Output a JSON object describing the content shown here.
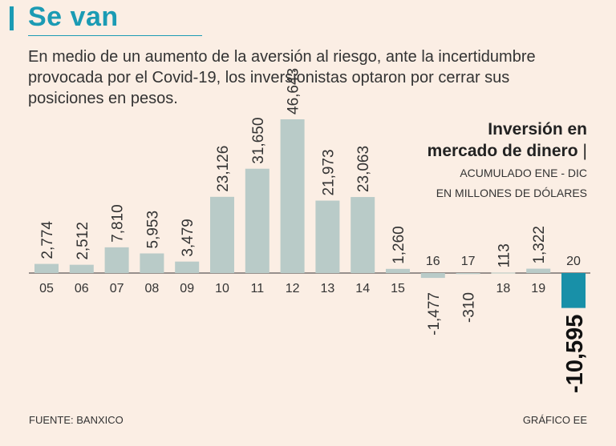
{
  "header": {
    "title": "Se van",
    "subtitle": "En medio de un aumento de la aversión al riesgo, ante la incertidumbre provocada por el Covid-19, los inversionistas optaron por cerrar sus posiciones en pesos."
  },
  "chart_info": {
    "title_line1": "Inversión en",
    "title_line2": "mercado de dinero",
    "title_sep": "|",
    "sub_line1": "ACUMULADO ENE - DIC",
    "sub_line2": "EN MILLONES DE DÓLARES"
  },
  "footer": {
    "source": "FUENTE: BANXICO",
    "credit": "GRÁFICO EE"
  },
  "colors": {
    "accent": "#1b9bb4",
    "bar": "#b9cbc8",
    "highlight_bar": "#1890a8",
    "background": "#fbeee4"
  },
  "chart_data": {
    "type": "bar",
    "categories": [
      "05",
      "06",
      "07",
      "08",
      "09",
      "10",
      "11",
      "12",
      "13",
      "14",
      "15",
      "16",
      "17",
      "18",
      "19",
      "20"
    ],
    "values": [
      2774,
      2512,
      7810,
      5953,
      3479,
      23126,
      31650,
      46643,
      21973,
      23063,
      1260,
      -1477,
      -310,
      113,
      1322,
      -10595
    ],
    "labels": [
      "2,774",
      "2,512",
      "7,810",
      "5,953",
      "3,479",
      "23,126",
      "31,650",
      "46,643",
      "21,973",
      "23,063",
      "1,260",
      "-1,477",
      "-310",
      "113",
      "1,322",
      "-10,595"
    ],
    "highlight_index": 15,
    "xlabel": "",
    "ylabel": "",
    "grid": false
  }
}
